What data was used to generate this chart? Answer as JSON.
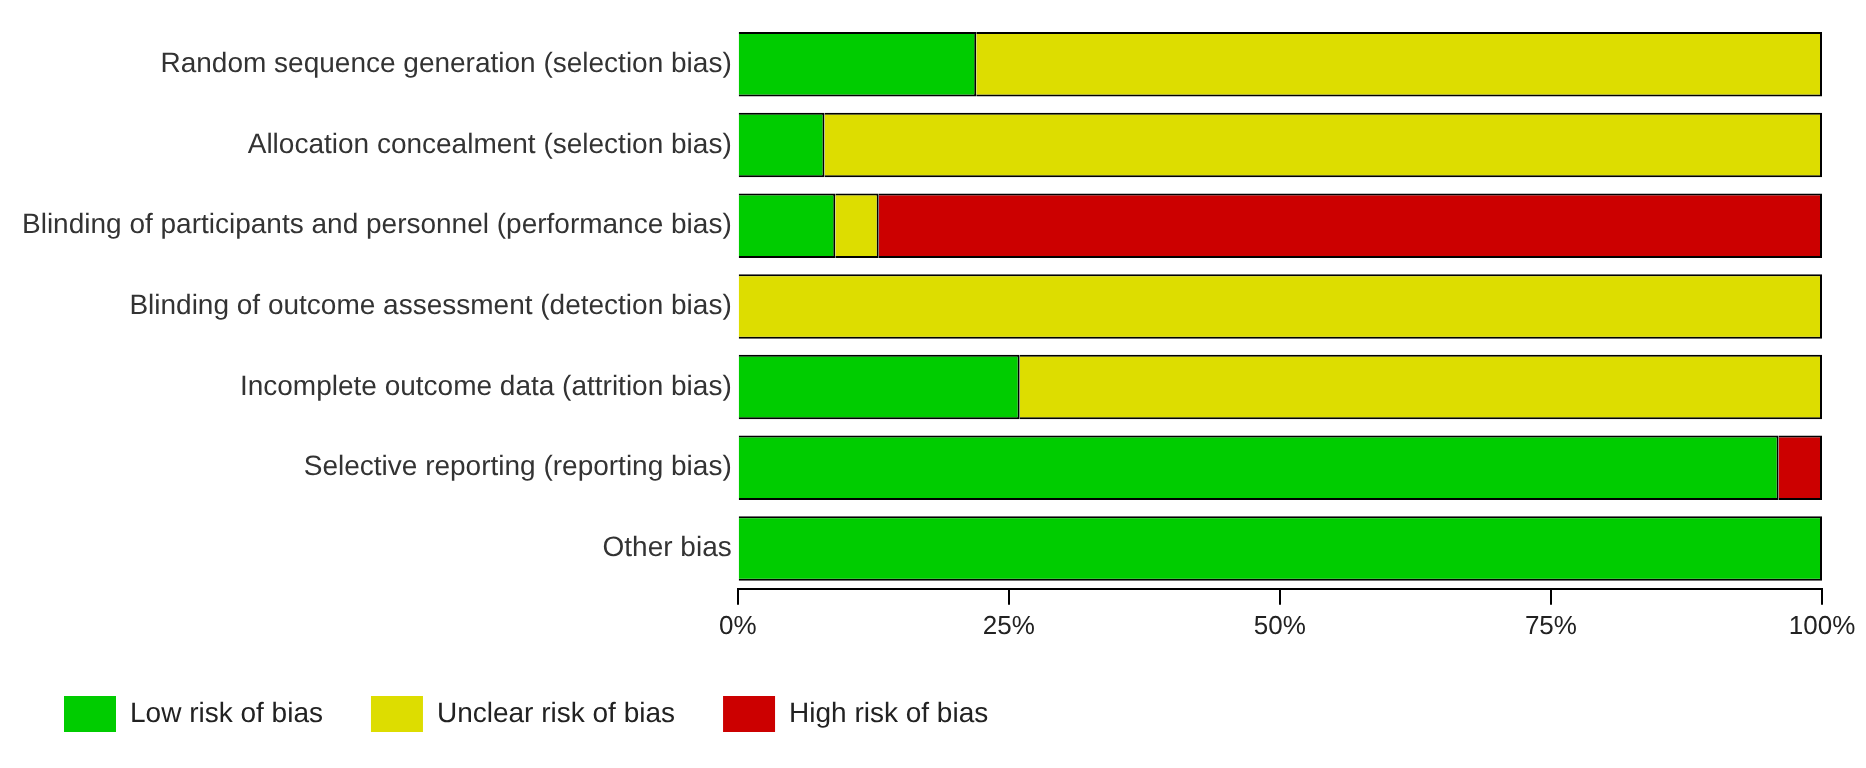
{
  "chart_data": {
    "type": "bar",
    "orientation": "horizontal",
    "stacked": true,
    "categories": [
      "Random sequence generation (selection bias)",
      "Allocation concealment (selection bias)",
      "Blinding of participants and personnel (performance bias)",
      "Blinding of outcome assessment (detection bias)",
      "Incomplete outcome data (attrition bias)",
      "Selective reporting (reporting bias)",
      "Other bias"
    ],
    "series": [
      {
        "name": "Low risk of bias",
        "color": "#00cc00",
        "values": [
          22,
          8,
          9,
          0,
          26,
          96,
          100
        ]
      },
      {
        "name": "Unclear risk of bias",
        "color": "#dddd00",
        "values": [
          78,
          92,
          4,
          100,
          74,
          0,
          0
        ]
      },
      {
        "name": "High risk of bias",
        "color": "#cc0000",
        "values": [
          0,
          0,
          87,
          0,
          0,
          4,
          0
        ]
      }
    ],
    "xlim": [
      0,
      100
    ],
    "xticks": [
      {
        "value": 0,
        "label": "0%"
      },
      {
        "value": 25,
        "label": "25%"
      },
      {
        "value": 50,
        "label": "50%"
      },
      {
        "value": 75,
        "label": "75%"
      },
      {
        "value": 100,
        "label": "100%"
      }
    ],
    "grid": false,
    "legend": "bottom"
  }
}
